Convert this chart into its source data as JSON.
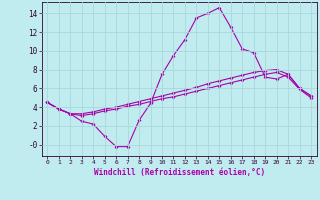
{
  "xlabel": "Windchill (Refroidissement éolien,°C)",
  "background_color": "#c0ecf0",
  "grid_color": "#a8d8dc",
  "line_color": "#aa00aa",
  "xlim": [
    -0.5,
    23.5
  ],
  "ylim": [
    -1.2,
    15.2
  ],
  "xticks": [
    0,
    1,
    2,
    3,
    4,
    5,
    6,
    7,
    8,
    9,
    10,
    11,
    12,
    13,
    14,
    15,
    16,
    17,
    18,
    19,
    20,
    21,
    22,
    23
  ],
  "yticks": [
    0,
    2,
    4,
    6,
    8,
    10,
    12,
    14
  ],
  "ytick_labels": [
    "-0",
    "2",
    "4",
    "6",
    "8",
    "10",
    "12",
    "14"
  ],
  "line1_x": [
    0,
    1,
    2,
    3,
    4,
    5,
    6,
    7,
    8,
    9,
    10,
    11,
    12,
    13,
    14,
    15,
    16,
    17,
    18,
    19,
    20,
    21,
    22,
    23
  ],
  "line1_y": [
    4.5,
    3.8,
    3.3,
    2.5,
    2.2,
    0.9,
    -0.2,
    -0.2,
    2.6,
    4.4,
    7.5,
    9.5,
    11.2,
    13.5,
    14.0,
    14.6,
    12.5,
    10.2,
    9.8,
    7.2,
    7.0,
    7.5,
    6.0,
    5.2
  ],
  "line2_x": [
    0,
    1,
    2,
    3,
    4,
    5,
    6,
    7,
    8,
    9,
    10,
    11,
    12,
    13,
    14,
    15,
    16,
    17,
    18,
    19,
    20,
    21,
    22,
    23
  ],
  "line2_y": [
    4.5,
    3.8,
    3.3,
    3.3,
    3.5,
    3.8,
    4.0,
    4.3,
    4.6,
    4.9,
    5.2,
    5.5,
    5.8,
    6.1,
    6.5,
    6.8,
    7.1,
    7.4,
    7.7,
    7.9,
    8.0,
    7.5,
    6.0,
    5.2
  ],
  "line3_x": [
    0,
    1,
    2,
    3,
    4,
    5,
    6,
    7,
    8,
    9,
    10,
    11,
    12,
    13,
    14,
    15,
    16,
    17,
    18,
    19,
    20,
    21,
    22,
    23
  ],
  "line3_y": [
    4.5,
    3.8,
    3.3,
    3.1,
    3.3,
    3.6,
    3.8,
    4.1,
    4.3,
    4.6,
    4.9,
    5.1,
    5.4,
    5.7,
    6.0,
    6.3,
    6.6,
    6.9,
    7.2,
    7.5,
    7.7,
    7.2,
    5.9,
    5.0
  ]
}
